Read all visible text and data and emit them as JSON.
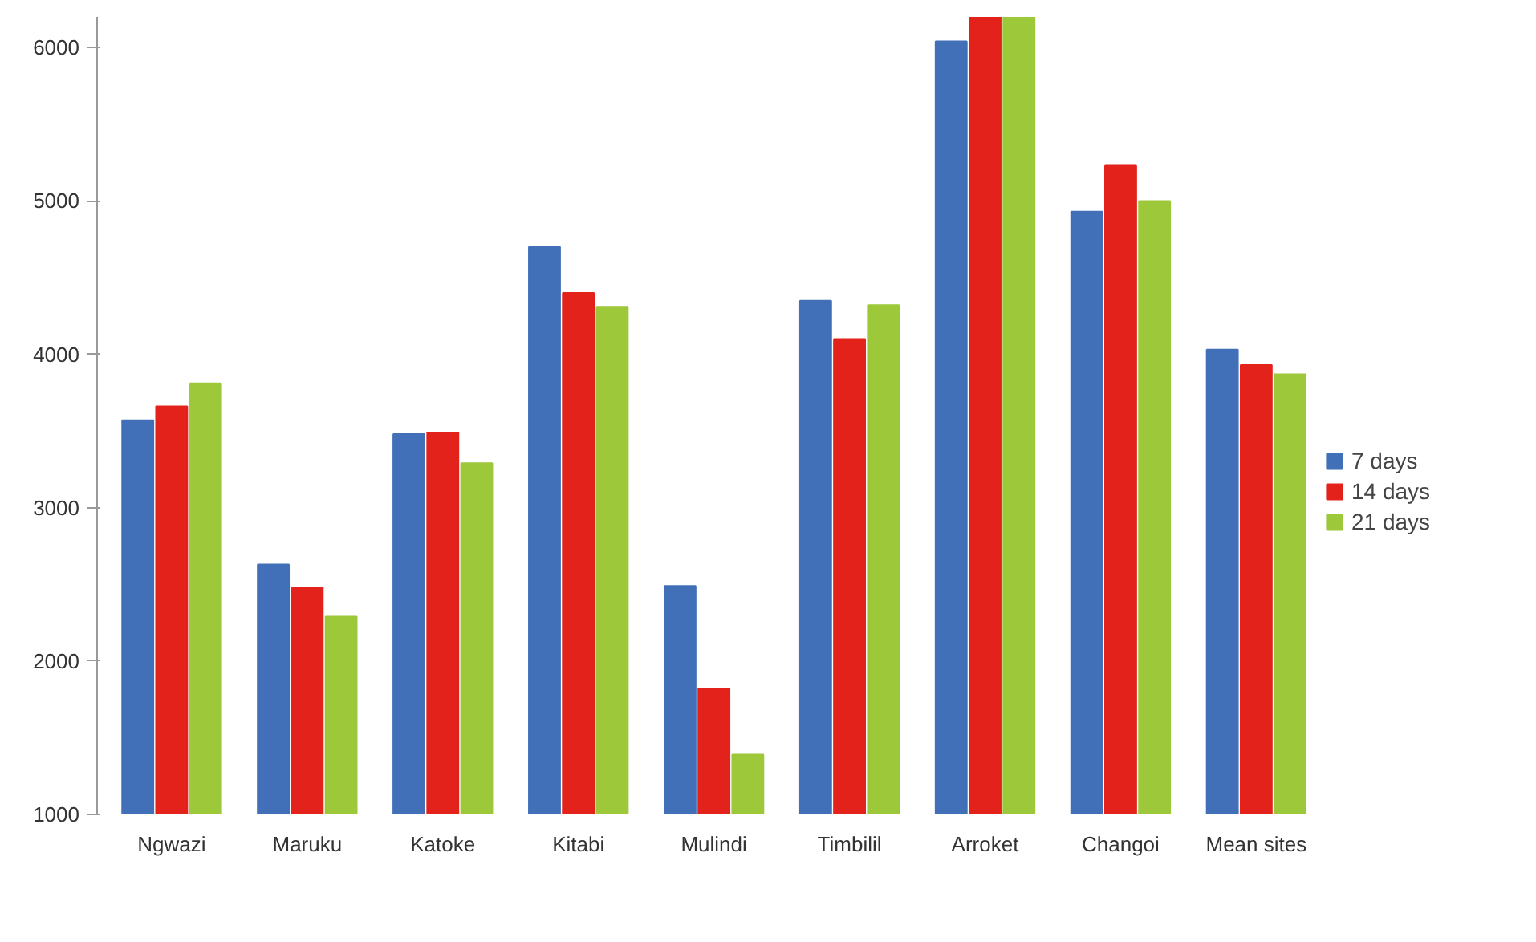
{
  "chart_data": {
    "type": "bar",
    "categories": [
      "Ngwazi",
      "Maruku",
      "Katoke",
      "Kitabi",
      "Mulindi",
      "Timbilil",
      "Arroket",
      "Changoi",
      "Mean sites"
    ],
    "series": [
      {
        "name": "7 days",
        "color": "#4170b8",
        "values": [
          3570,
          2630,
          3480,
          4700,
          2490,
          4350,
          6040,
          4930,
          4030
        ]
      },
      {
        "name": "14 days",
        "color": "#e3221c",
        "values": [
          3660,
          2480,
          3490,
          4400,
          1820,
          4100,
          6200,
          5230,
          3930
        ]
      },
      {
        "name": "21 days",
        "color": "#9cc83a",
        "values": [
          3810,
          2290,
          3290,
          4310,
          1390,
          4320,
          6200,
          5000,
          3870
        ]
      }
    ],
    "ylim": [
      1000,
      6200
    ],
    "yticks": [
      1000,
      2000,
      3000,
      4000,
      5000,
      6000
    ],
    "grid": false,
    "legend": "right"
  }
}
